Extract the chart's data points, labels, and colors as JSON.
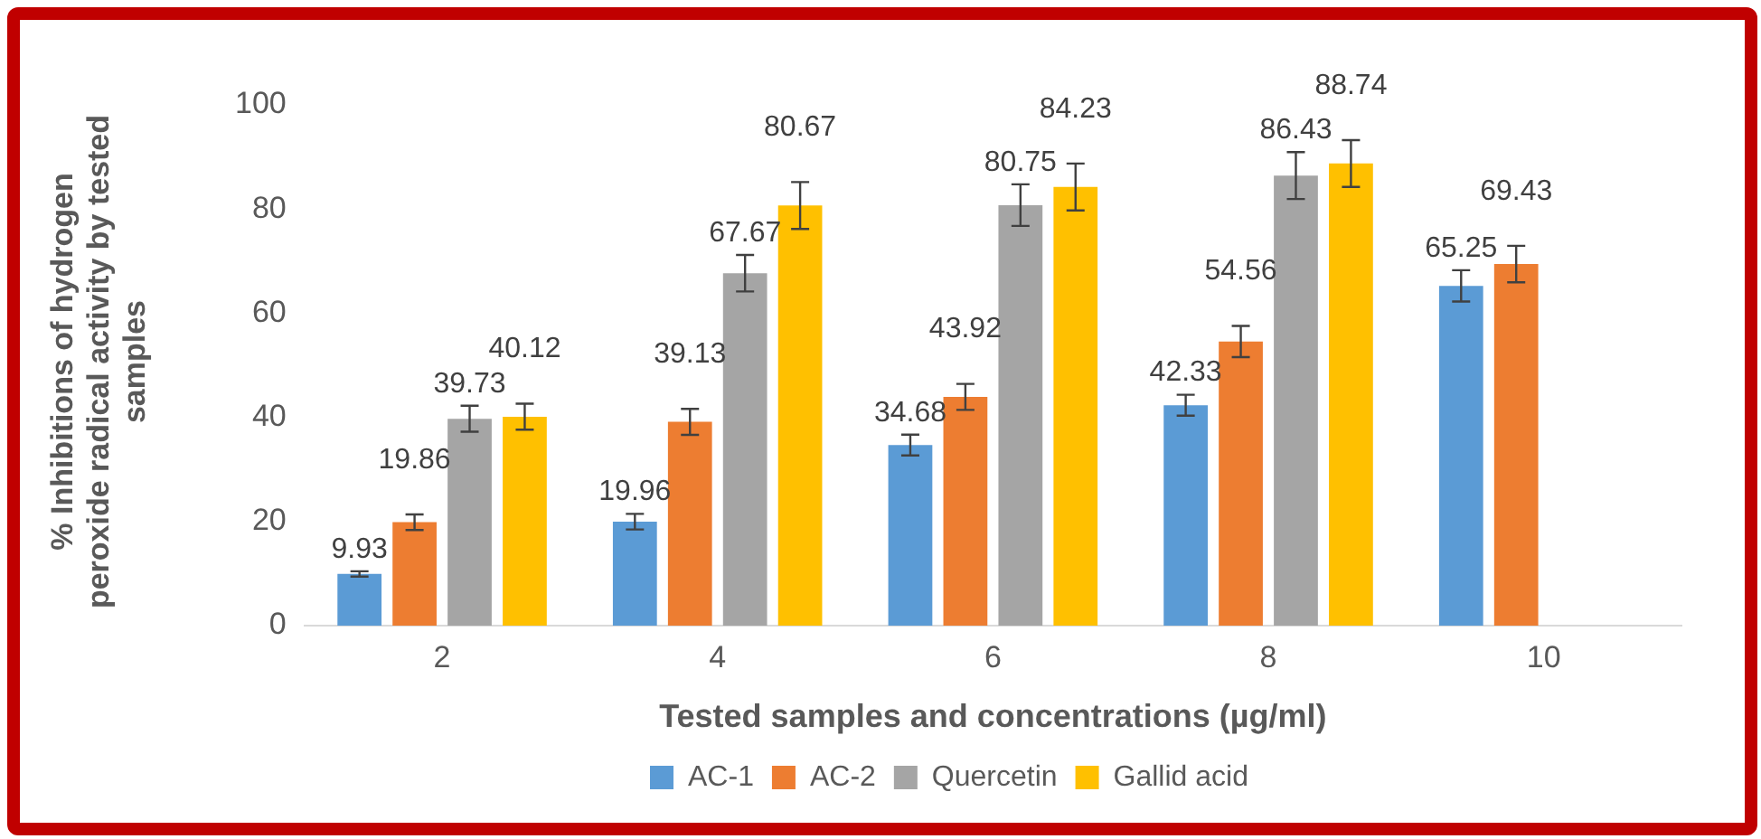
{
  "chart_data": {
    "type": "bar",
    "xlabel": "Tested samples and concentrations (µg/ml)",
    "ylabel": "% Inhibitions of hydrogen peroxide radical activity by tested samples",
    "categories": [
      "2",
      "4",
      "6",
      "8",
      "10"
    ],
    "series": [
      {
        "name": "AC-1",
        "color": "#5b9bd5",
        "values": [
          9.93,
          19.96,
          34.68,
          42.33,
          65.25
        ],
        "errors": [
          0.5,
          1.5,
          2,
          2,
          3
        ]
      },
      {
        "name": "AC-2",
        "color": "#ed7d31",
        "values": [
          19.86,
          39.13,
          43.92,
          54.56,
          69.43
        ],
        "errors": [
          1.5,
          2.5,
          2.5,
          3,
          3.5
        ]
      },
      {
        "name": "Quercetin",
        "color": "#a5a5a5",
        "values": [
          39.73,
          67.67,
          80.75,
          86.43,
          null
        ],
        "errors": [
          2.5,
          3.5,
          4,
          4.5,
          null
        ]
      },
      {
        "name": "Gallid acid",
        "color": "#ffc000",
        "values": [
          40.12,
          80.67,
          84.23,
          88.74,
          null
        ],
        "errors": [
          2.5,
          4.5,
          4.5,
          4.5,
          null
        ]
      }
    ],
    "ylim": [
      0,
      100
    ],
    "yticks": [
      0,
      20,
      40,
      60,
      80,
      100
    ],
    "grid": false,
    "legend": "bottom",
    "data_labels": true
  }
}
